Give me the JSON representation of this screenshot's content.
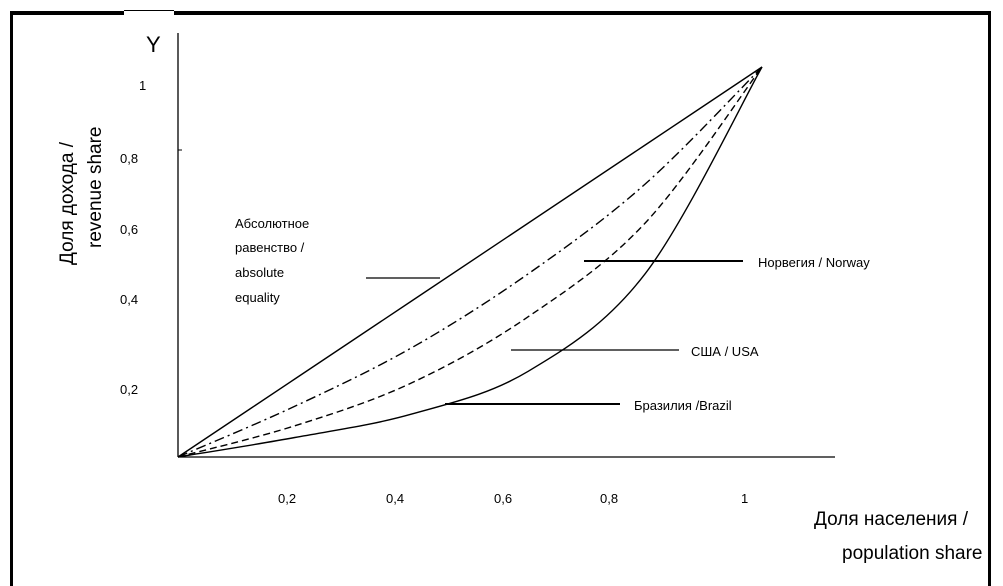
{
  "chart_data": {
    "type": "line",
    "y_letter": "Y",
    "ylabel": [
      "Доля дохода /",
      "revenue share"
    ],
    "xlabel": [
      "Доля населения /",
      "population share"
    ],
    "x_ticks": [
      "0,2",
      "0,4",
      "0,6",
      "0,8",
      "1"
    ],
    "y_ticks": [
      "0,2",
      "0,4",
      "0,6",
      "0,8",
      "1"
    ],
    "xlim": [
      0,
      1
    ],
    "ylim": [
      0,
      1
    ],
    "grid": false,
    "series": [
      {
        "name": "Абсолютное равенство / absolute equality",
        "style": "solid",
        "x": [
          0,
          0.2,
          0.4,
          0.6,
          0.8,
          1
        ],
        "y": [
          0,
          0.2,
          0.4,
          0.6,
          0.8,
          1
        ]
      },
      {
        "name": "Норвегия / Norway",
        "style": "dash-dot",
        "x": [
          0,
          0.2,
          0.4,
          0.6,
          0.8,
          1
        ],
        "y": [
          0,
          0.13,
          0.28,
          0.47,
          0.7,
          1
        ]
      },
      {
        "name": "США / USA",
        "style": "dashed",
        "x": [
          0,
          0.2,
          0.4,
          0.6,
          0.8,
          1
        ],
        "y": [
          0,
          0.08,
          0.19,
          0.36,
          0.6,
          1
        ]
      },
      {
        "name": "Бразилия /Brazil",
        "style": "solid",
        "x": [
          0,
          0.2,
          0.4,
          0.6,
          0.8,
          1
        ],
        "y": [
          0,
          0.05,
          0.11,
          0.22,
          0.47,
          1
        ]
      }
    ],
    "annotations": {
      "equality": [
        "Абсолютное",
        "равенство /",
        "absolute",
        "equality"
      ],
      "norway": "Норвегия / Norway",
      "usa": "США / USA",
      "brazil": "Бразилия /Brazil"
    }
  }
}
